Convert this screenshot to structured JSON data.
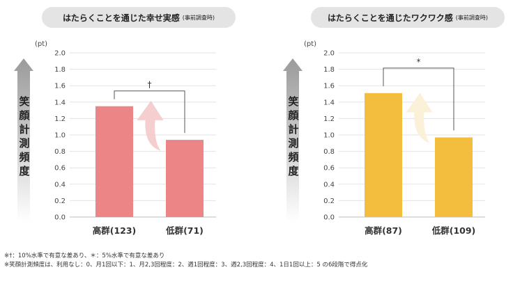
{
  "panels": [
    {
      "title": "はたらくことを通じた幸せ実感",
      "subtitle": "(事前調査時)",
      "ylabel": "笑顔計測頻度",
      "color": "#ec8585",
      "arrow_color": "#f4cccc"
    },
    {
      "title": "はたらくことを通じたワクワク感",
      "subtitle": "(事前調査時)",
      "ylabel": "笑顔計測頻度",
      "color": "#f3bd3e",
      "arrow_color": "#fbefd6"
    }
  ],
  "chart_data": [
    {
      "type": "bar",
      "title": "はたらくことを通じた幸せ実感",
      "categories": [
        "高群(123)",
        "低群(71)"
      ],
      "values": [
        1.35,
        0.94
      ],
      "ylabel": "笑顔計測頻度",
      "yunit": "(pt)",
      "ylim": [
        0,
        2.0
      ],
      "yticks": [
        "0.0",
        "0.2",
        "0.4",
        "0.6",
        "0.8",
        "1.0",
        "1.2",
        "1.4",
        "1.6",
        "1.8",
        "2.0"
      ],
      "grid": true,
      "significance": "†"
    },
    {
      "type": "bar",
      "title": "はたらくことを通じたワクワク感",
      "categories": [
        "高群(87)",
        "低群(109)"
      ],
      "values": [
        1.51,
        0.97
      ],
      "ylabel": "笑顔計測頻度",
      "yunit": "(pt)",
      "ylim": [
        0,
        2.0
      ],
      "yticks": [
        "0.0",
        "0.2",
        "0.4",
        "0.6",
        "0.8",
        "1.0",
        "1.2",
        "1.4",
        "1.6",
        "1.8",
        "2.0"
      ],
      "grid": true,
      "significance": "*"
    }
  ],
  "notes": [
    "※†：10%水準で有意な差あり、＊：5%水準で有意な差あり",
    "※笑顔計測頻度は、利用なし：0、月1回以下：1、月2,3回程度：2、週1回程度：3、週2,3回程度：4、1日1回以上：5 の6段階で得点化"
  ]
}
